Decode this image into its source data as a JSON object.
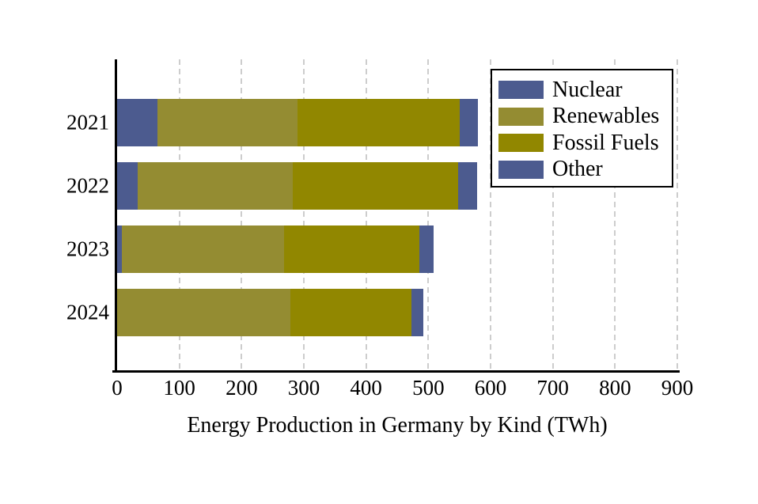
{
  "chart_data": {
    "type": "bar",
    "orientation": "horizontal",
    "stacked": true,
    "title": "Energy Production in Germany by Kind (TWh)",
    "categories": [
      "2021",
      "2022",
      "2023",
      "2024"
    ],
    "series": [
      {
        "name": "Nuclear",
        "color": "#4C5B8F",
        "values": [
          65,
          33,
          7,
          0
        ]
      },
      {
        "name": "Renewables",
        "color": "#948C32",
        "values": [
          225,
          249,
          261,
          278
        ]
      },
      {
        "name": "Fossil Fuels",
        "color": "#918700",
        "values": [
          260,
          266,
          217,
          195
        ]
      },
      {
        "name": "Other",
        "color": "#4C5B8F",
        "values": [
          30,
          30,
          24,
          19
        ]
      }
    ],
    "totals": [
      580,
      578,
      509,
      492
    ],
    "xlim": [
      0,
      900
    ],
    "xticks": [
      0,
      100,
      200,
      300,
      400,
      500,
      600,
      700,
      800,
      900
    ],
    "grid": "vertical-dashed",
    "legend_position": "top-right",
    "legend_entries": [
      "Nuclear",
      "Renewables",
      "Fossil Fuels",
      "Other"
    ]
  },
  "colors": {
    "background": "#ffffff",
    "axis": "#000000",
    "grid": "#cdcdcd",
    "text": "#000000",
    "legend_border": "#000000"
  }
}
